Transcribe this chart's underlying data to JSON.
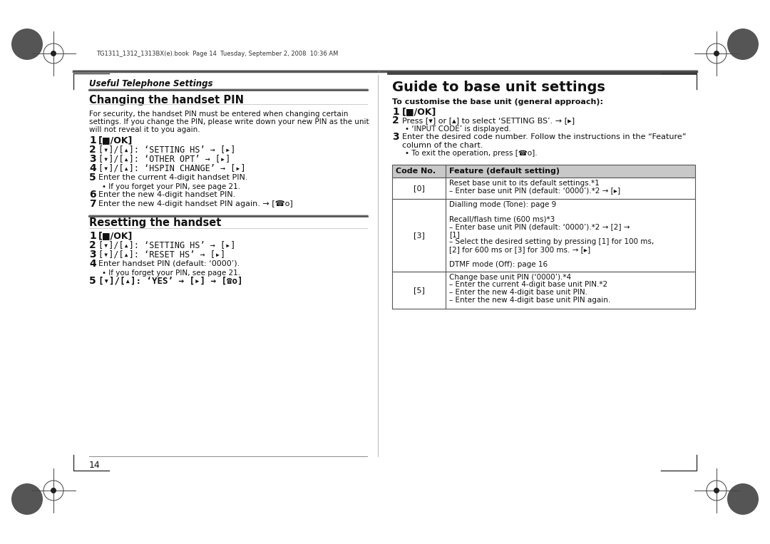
{
  "bg_color": "#ffffff",
  "file_info": "TG1311_1312_1313BX(e).book  Page 14  Tuesday, September 2, 2008  10:36 AM",
  "page_num": "14",
  "header_italic": "Useful Telephone Settings",
  "s1_title": "Changing the handset PIN",
  "s1_body": [
    "For security, the handset PIN must be entered when changing certain",
    "settings. If you change the PIN, please write down your new PIN as the unit",
    "will not reveal it to you again."
  ],
  "s1_steps": [
    {
      "n": "1",
      "t": "[■/OK]",
      "bold": true
    },
    {
      "n": "2",
      "t": "[▾]/[▴]: ‘SETTING HS’ → [▸]",
      "mono": true
    },
    {
      "n": "3",
      "t": "[▾]/[▴]: ‘OTHER OPT’ → [▸]",
      "mono": true
    },
    {
      "n": "4",
      "t": "[▾]/[▴]: ‘HSPIN CHANGE’ → [▸]",
      "mono": true
    },
    {
      "n": "5",
      "t": "Enter the current 4-digit handset PIN.",
      "bullet": "If you forget your PIN, see page 21."
    },
    {
      "n": "6",
      "t": "Enter the new 4-digit handset PIN."
    },
    {
      "n": "7",
      "t": "Enter the new 4-digit handset PIN again. → [☎o]"
    }
  ],
  "s2_title": "Resetting the handset",
  "s2_steps": [
    {
      "n": "1",
      "t": "[■/OK]",
      "bold": true
    },
    {
      "n": "2",
      "t": "[▾]/[▴]: ‘SETTING HS’ → [▸]",
      "mono": true
    },
    {
      "n": "3",
      "t": "[▾]/[▴]: ‘RESET HS’ → [▸]",
      "mono": true
    },
    {
      "n": "4",
      "t": "Enter handset PIN (default: ‘0000’).",
      "bullet": "If you forget your PIN, see page 21."
    },
    {
      "n": "5",
      "t": "[▾]/[▴]: ‘YES’ → [▸] → [☎o]",
      "bold": true,
      "mono": true
    }
  ],
  "r_title": "Guide to base unit settings",
  "r_sub": "To customise the base unit (general approach):",
  "r_steps": [
    {
      "n": "1",
      "t": "[■/OK]",
      "bold": true
    },
    {
      "n": "2",
      "t": "Press [▾] or [▴] to select ‘SETTING BS’. → [▸]",
      "mono_part": true,
      "bullet": "‘INPUT CODE’ is displayed."
    },
    {
      "n": "3",
      "t": "Enter the desired code number. Follow the instructions in the “Feature”",
      "t2": "column of the chart.",
      "bullet": "To exit the operation, press [☎o]."
    }
  ],
  "tbl_h": [
    "Code No.",
    "Feature (default setting)"
  ],
  "tbl_rows": [
    {
      "code": "[0]",
      "lines": [
        "Reset base unit to its default settings.*1",
        "– Enter base unit PIN (default: ‘0000’).*2 → [▸]"
      ]
    },
    {
      "code": "[3]",
      "lines": [
        "Dialling mode (Tone): page 9",
        "",
        "Recall/flash time (600 ms)*3",
        "– Enter base unit PIN (default: ‘0000’).*2 → [2] →",
        "[1]",
        "– Select the desired setting by pressing [1] for 100 ms,",
        "[2] for 600 ms or [3] for 300 ms. → [▸]",
        "",
        "DTMF mode (Off): page 16"
      ]
    },
    {
      "code": "[5]",
      "lines": [
        "Change base unit PIN (‘0000’).*4",
        "– Enter the current 4-digit base unit PIN.*2",
        "– Enter the new 4-digit base unit PIN.",
        "– Enter the new 4-digit base unit PIN again."
      ]
    }
  ]
}
